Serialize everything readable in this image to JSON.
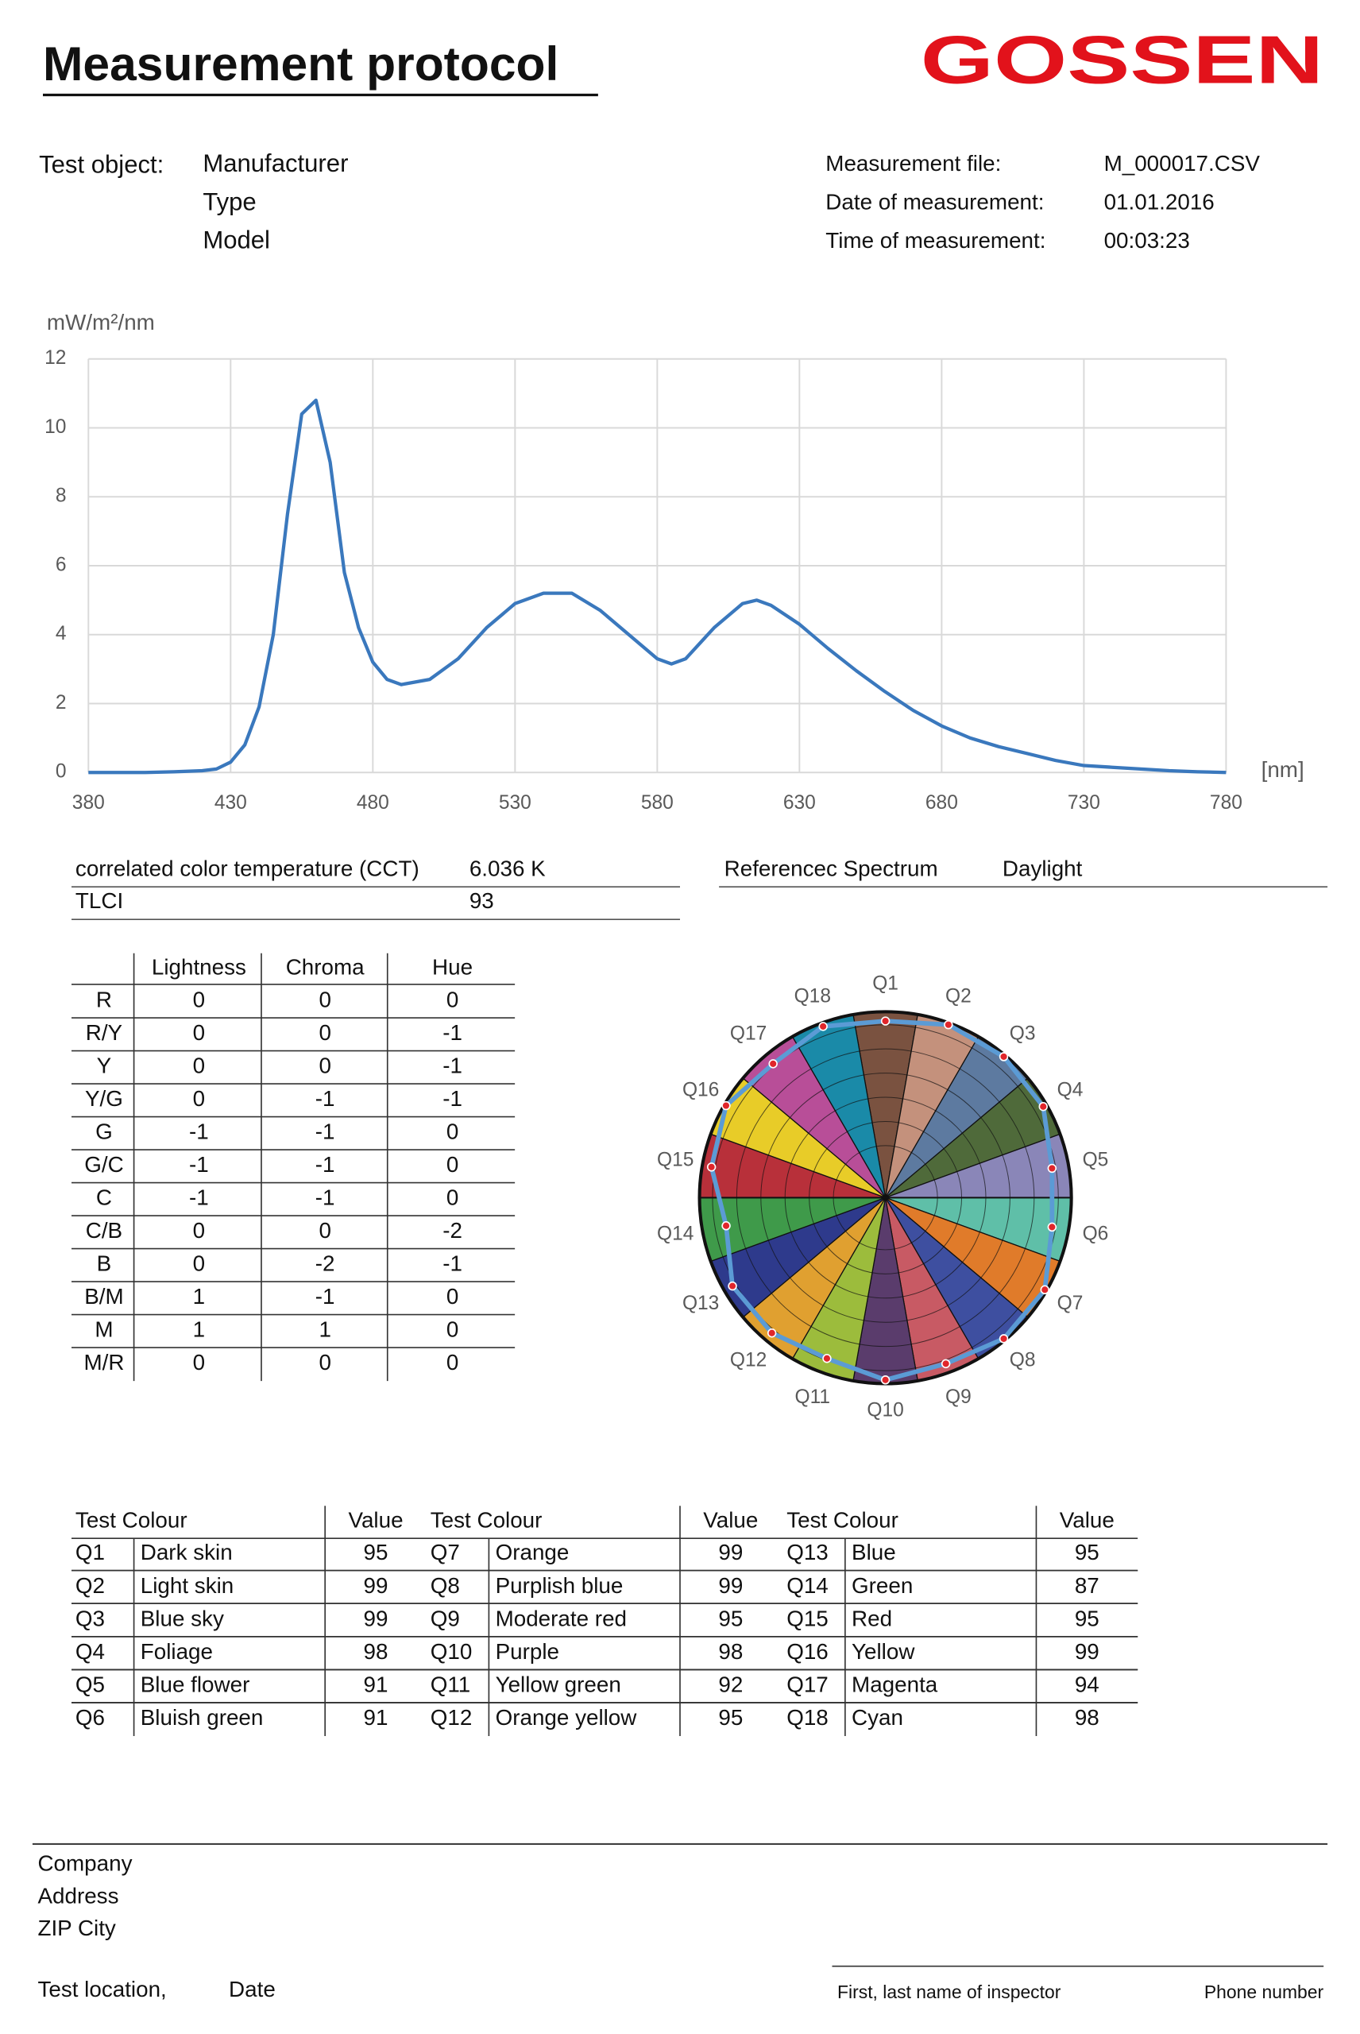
{
  "header": {
    "title": "Measurement protocol",
    "logo": "GOSSEN"
  },
  "test_object": {
    "label": "Test object:",
    "lines": [
      "Manufacturer",
      "Type",
      "Model"
    ]
  },
  "measurement": {
    "rows": [
      [
        "Measurement file:",
        "M_000017.CSV"
      ],
      [
        "Date of measurement:",
        "01.01.2016"
      ],
      [
        "Time of measurement:",
        "00:03:23"
      ]
    ]
  },
  "chart_data": [
    {
      "type": "line",
      "y_label": "mW/m²/nm",
      "x_label": "[nm]",
      "x": [
        380,
        390,
        400,
        410,
        420,
        425,
        430,
        435,
        440,
        445,
        450,
        455,
        460,
        465,
        470,
        475,
        480,
        485,
        490,
        500,
        510,
        520,
        530,
        540,
        550,
        560,
        570,
        580,
        585,
        590,
        600,
        610,
        615,
        620,
        630,
        640,
        650,
        660,
        670,
        680,
        690,
        700,
        710,
        720,
        730,
        740,
        750,
        760,
        770,
        780
      ],
      "series": [
        {
          "color": "#3a78bd",
          "values": [
            0,
            0,
            0,
            0.02,
            0.05,
            0.1,
            0.3,
            0.8,
            1.9,
            4.0,
            7.5,
            10.4,
            10.8,
            9.0,
            5.8,
            4.2,
            3.2,
            2.7,
            2.55,
            2.7,
            3.3,
            4.2,
            4.9,
            5.2,
            5.2,
            4.7,
            4.0,
            3.3,
            3.15,
            3.3,
            4.2,
            4.9,
            5.0,
            4.85,
            4.3,
            3.6,
            2.95,
            2.35,
            1.8,
            1.35,
            1.0,
            0.75,
            0.55,
            0.35,
            0.2,
            0.15,
            0.1,
            0.05,
            0.02,
            0
          ]
        }
      ],
      "xlim": [
        380,
        780
      ],
      "xticks": [
        380,
        430,
        480,
        530,
        580,
        630,
        680,
        730,
        780
      ],
      "ylim": [
        0,
        12
      ],
      "yticks": [
        0,
        2,
        4,
        6,
        8,
        10,
        12
      ],
      "grid": true
    },
    {
      "type": "polar",
      "categories": [
        "Q1",
        "Q2",
        "Q3",
        "Q4",
        "Q5",
        "Q6",
        "Q7",
        "Q8",
        "Q9",
        "Q10",
        "Q11",
        "Q12",
        "Q13",
        "Q14",
        "Q15",
        "Q16",
        "Q17",
        "Q18"
      ],
      "values": [
        95,
        99,
        99,
        98,
        91,
        91,
        99,
        99,
        95,
        98,
        92,
        95,
        95,
        87,
        95,
        99,
        94,
        98
      ],
      "rlim": [
        0,
        100
      ],
      "color": "#5b9bd5",
      "marker_color": "#e0262b",
      "sector_colors": [
        "#7a5240",
        "#c4917c",
        "#5d7aa0",
        "#4f6a3a",
        "#8a86b8",
        "#5fbfa8",
        "#e07b2a",
        "#3e4fa0",
        "#c85a64",
        "#5a3c6c",
        "#9cbc3c",
        "#e0a030",
        "#2e3a8c",
        "#3f9a4a",
        "#b8303a",
        "#e8cc28",
        "#b84e98",
        "#1a8aa8"
      ]
    }
  ],
  "summary": {
    "rows": [
      [
        "correlated color temperature (CCT)",
        "6.036 K"
      ],
      [
        "TLCI",
        "93"
      ]
    ],
    "reference": [
      "Referencec Spectrum",
      "Daylight"
    ]
  },
  "deviation_table": {
    "header": [
      "Lightness",
      "Chroma",
      "Hue"
    ],
    "rows": [
      [
        "R",
        0,
        0,
        0
      ],
      [
        "R/Y",
        0,
        0,
        -1
      ],
      [
        "Y",
        0,
        0,
        -1
      ],
      [
        "Y/G",
        0,
        -1,
        -1
      ],
      [
        "G",
        -1,
        -1,
        0
      ],
      [
        "G/C",
        -1,
        -1,
        0
      ],
      [
        "C",
        -1,
        -1,
        0
      ],
      [
        "C/B",
        0,
        0,
        -2
      ],
      [
        "B",
        0,
        -2,
        -1
      ],
      [
        "B/M",
        1,
        -1,
        0
      ],
      [
        "M",
        1,
        1,
        0
      ],
      [
        "M/R",
        0,
        0,
        0
      ]
    ]
  },
  "test_colour_table": {
    "groups": [
      {
        "header": [
          "Test Colour",
          "Value"
        ],
        "rows": [
          [
            "Q1",
            "Dark skin",
            95
          ],
          [
            "Q2",
            "Light skin",
            99
          ],
          [
            "Q3",
            "Blue sky",
            99
          ],
          [
            "Q4",
            "Foliage",
            98
          ],
          [
            "Q5",
            "Blue flower",
            91
          ],
          [
            "Q6",
            "Bluish green",
            91
          ]
        ]
      },
      {
        "header": [
          "Test Colour",
          "Value"
        ],
        "rows": [
          [
            "Q7",
            "Orange",
            99
          ],
          [
            "Q8",
            "Purplish blue",
            99
          ],
          [
            "Q9",
            "Moderate red",
            95
          ],
          [
            "Q10",
            "Purple",
            98
          ],
          [
            "Q11",
            "Yellow green",
            92
          ],
          [
            "Q12",
            "Orange yellow",
            95
          ]
        ]
      },
      {
        "header": [
          "Test Colour",
          "Value"
        ],
        "rows": [
          [
            "Q13",
            "Blue",
            95
          ],
          [
            "Q14",
            "Green",
            87
          ],
          [
            "Q15",
            "Red",
            95
          ],
          [
            "Q16",
            "Yellow",
            99
          ],
          [
            "Q17",
            "Magenta",
            94
          ],
          [
            "Q18",
            "Cyan",
            98
          ]
        ]
      }
    ]
  },
  "footer": {
    "address": [
      "Company",
      "Address",
      "ZIP  City"
    ],
    "location": "Test location,",
    "date": "Date",
    "inspector": "First, last name of inspector",
    "phone": "Phone number"
  }
}
